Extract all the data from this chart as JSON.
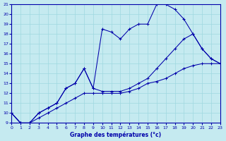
{
  "xlabel": "Graphe des températures (°c)",
  "bg_color": "#c5eaf0",
  "line_color": "#0000aa",
  "grid_color": "#9fd8e0",
  "xlim": [
    0,
    23
  ],
  "ylim": [
    9,
    21
  ],
  "xticks": [
    0,
    1,
    2,
    3,
    4,
    5,
    6,
    7,
    8,
    9,
    10,
    11,
    12,
    13,
    14,
    15,
    16,
    17,
    18,
    19,
    20,
    21,
    22,
    23
  ],
  "yticks": [
    9,
    10,
    11,
    12,
    13,
    14,
    15,
    16,
    17,
    18,
    19,
    20,
    21
  ],
  "series": [
    {
      "x": [
        0,
        1,
        2,
        3,
        4,
        5,
        6,
        7,
        8,
        9,
        10,
        11,
        12,
        13,
        14,
        15,
        16,
        17,
        18,
        19,
        20,
        21,
        22,
        23
      ],
      "y": [
        10,
        9.0,
        9.0,
        9.5,
        10.0,
        10.5,
        11.0,
        11.5,
        12.0,
        12.0,
        12.0,
        12.0,
        12.0,
        12.2,
        12.5,
        13.0,
        13.2,
        13.5,
        14.0,
        14.5,
        14.8,
        15.0,
        15.0,
        15.0
      ]
    },
    {
      "x": [
        0,
        1,
        2,
        3,
        4,
        5,
        6,
        7,
        8,
        9,
        10,
        11,
        12,
        13,
        14,
        15,
        16,
        17,
        18,
        19,
        20,
        21,
        22,
        23
      ],
      "y": [
        10,
        9.0,
        9.0,
        10.0,
        10.5,
        11.0,
        12.5,
        13.0,
        14.5,
        12.5,
        12.2,
        12.2,
        12.2,
        12.5,
        13.0,
        13.5,
        14.5,
        15.5,
        16.5,
        17.5,
        18.0,
        16.5,
        15.5,
        15.0
      ]
    },
    {
      "x": [
        0,
        1,
        2,
        3,
        4,
        5,
        6,
        7,
        8,
        9,
        10,
        11,
        12,
        13,
        14,
        15,
        16,
        17,
        18,
        19,
        20,
        21,
        22,
        23
      ],
      "y": [
        10,
        9.0,
        9.0,
        10.0,
        10.5,
        11.0,
        12.5,
        13.0,
        14.5,
        12.5,
        18.5,
        18.2,
        17.5,
        18.5,
        19.0,
        19.0,
        21.0,
        21.0,
        20.5,
        19.5,
        18.0,
        16.5,
        15.5,
        15.0
      ]
    }
  ]
}
